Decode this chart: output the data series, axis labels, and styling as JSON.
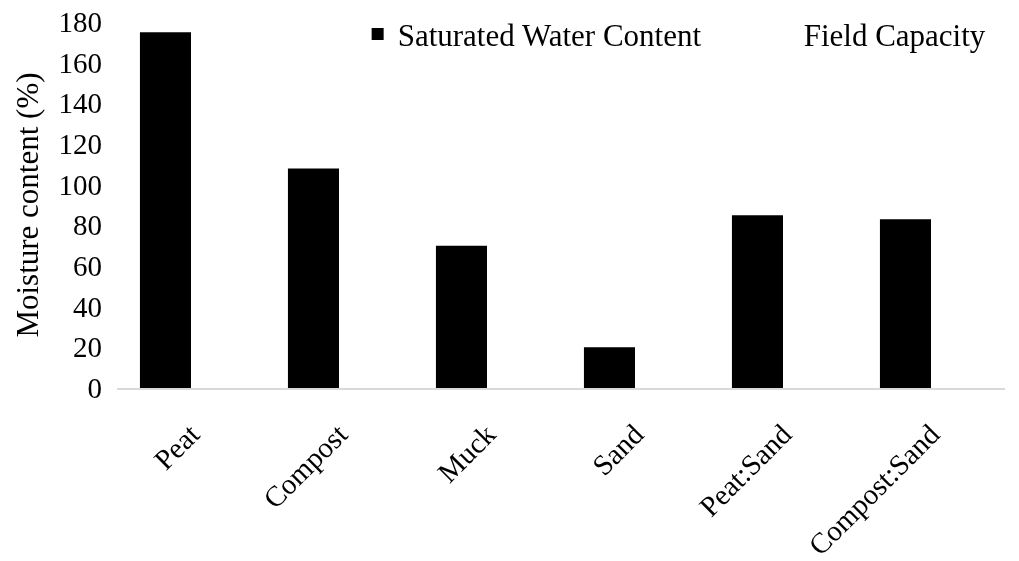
{
  "chart_data": {
    "type": "bar",
    "ylabel": "Moisture content (%)",
    "categories": [
      "Peat",
      "Compost",
      "Muck",
      "Sand",
      "Peat:Sand",
      "Compost:Sand"
    ],
    "series": [
      {
        "name": "Saturated Water Content",
        "color": "#000000",
        "values": [
          175,
          108,
          70,
          20,
          85,
          83
        ]
      },
      {
        "name": "Field Capacity",
        "values": [
          null,
          null,
          null,
          null,
          null,
          null
        ]
      }
    ],
    "ylim": [
      0,
      180
    ],
    "yticks": [
      0,
      20,
      40,
      60,
      80,
      100,
      120,
      140,
      160,
      180
    ],
    "grid": false,
    "legend": "top right"
  }
}
